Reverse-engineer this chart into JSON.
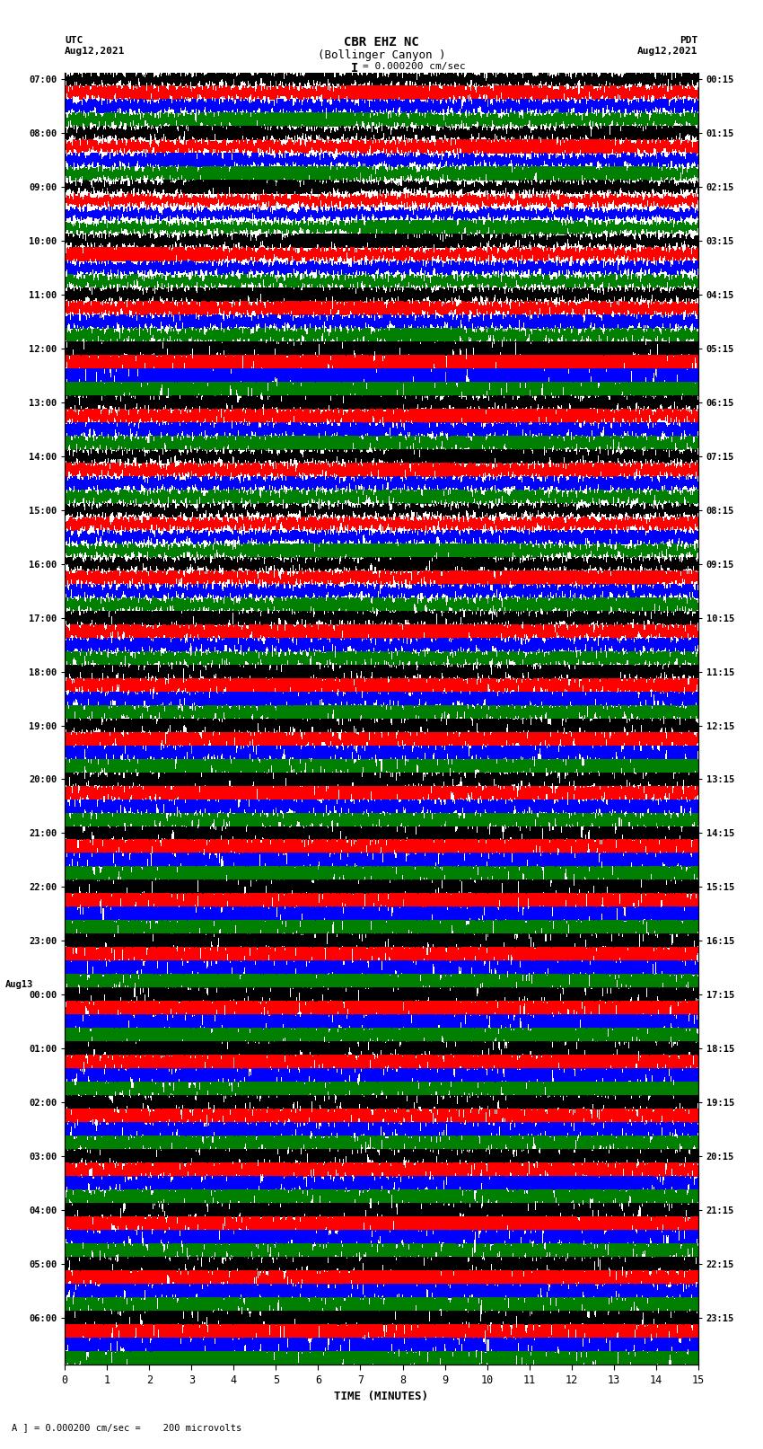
{
  "title_line1": "CBR EHZ NC",
  "title_line2": "(Bollinger Canyon )",
  "scale_label": "I = 0.000200 cm/sec",
  "left_header": "UTC\nAug12,2021",
  "right_header": "PDT\nAug12,2021",
  "bottom_note": "A ] = 0.000200 cm/sec =    200 microvolts",
  "xlabel": "TIME (MINUTES)",
  "n_rows": 96,
  "row_colors": [
    "black",
    "red",
    "blue",
    "green"
  ],
  "row_labels_utc": [
    "07:00",
    "",
    "",
    "",
    "08:00",
    "",
    "",
    "",
    "09:00",
    "",
    "",
    "",
    "10:00",
    "",
    "",
    "",
    "11:00",
    "",
    "",
    "",
    "12:00",
    "",
    "",
    "",
    "13:00",
    "",
    "",
    "",
    "14:00",
    "",
    "",
    "",
    "15:00",
    "",
    "",
    "",
    "16:00",
    "",
    "",
    "",
    "17:00",
    "",
    "",
    "",
    "18:00",
    "",
    "",
    "",
    "19:00",
    "",
    "",
    "",
    "20:00",
    "",
    "",
    "",
    "21:00",
    "",
    "",
    "",
    "22:00",
    "",
    "",
    "",
    "23:00",
    "",
    "",
    "",
    "Aug13\n00:00",
    "",
    "",
    "",
    "01:00",
    "",
    "",
    "",
    "02:00",
    "",
    "",
    "",
    "03:00",
    "",
    "",
    "",
    "04:00",
    "",
    "",
    "",
    "05:00",
    "",
    "",
    "",
    "06:00",
    "",
    "",
    ""
  ],
  "row_labels_pdt": [
    "00:15",
    "",
    "",
    "",
    "01:15",
    "",
    "",
    "",
    "02:15",
    "",
    "",
    "",
    "03:15",
    "",
    "",
    "",
    "04:15",
    "",
    "",
    "",
    "05:15",
    "",
    "",
    "",
    "06:15",
    "",
    "",
    "",
    "07:15",
    "",
    "",
    "",
    "08:15",
    "",
    "",
    "",
    "09:15",
    "",
    "",
    "",
    "10:15",
    "",
    "",
    "",
    "11:15",
    "",
    "",
    "",
    "12:15",
    "",
    "",
    "",
    "13:15",
    "",
    "",
    "",
    "14:15",
    "",
    "",
    "",
    "15:15",
    "",
    "",
    "",
    "16:15",
    "",
    "",
    "",
    "17:15",
    "",
    "",
    "",
    "18:15",
    "",
    "",
    "",
    "19:15",
    "",
    "",
    "",
    "20:15",
    "",
    "",
    "",
    "21:15",
    "",
    "",
    "",
    "22:15",
    "",
    "",
    "",
    "23:15",
    "",
    "",
    ""
  ],
  "bg_color": "white",
  "grid_color": "#888888",
  "noise_seed": 42,
  "figsize": [
    8.5,
    16.13
  ],
  "dpi": 100,
  "xmin": 0,
  "xmax": 15,
  "xticks": [
    0,
    1,
    2,
    3,
    4,
    5,
    6,
    7,
    8,
    9,
    10,
    11,
    12,
    13,
    14,
    15
  ],
  "amp_by_hour": [
    1.2,
    1.0,
    0.8,
    1.0,
    1.2,
    5.0,
    1.5,
    1.2,
    1.0,
    1.2,
    1.5,
    1.8,
    2.5,
    2.0,
    3.5,
    4.5,
    4.0,
    3.5,
    3.0,
    2.5,
    2.5,
    2.8,
    3.0,
    3.5
  ]
}
